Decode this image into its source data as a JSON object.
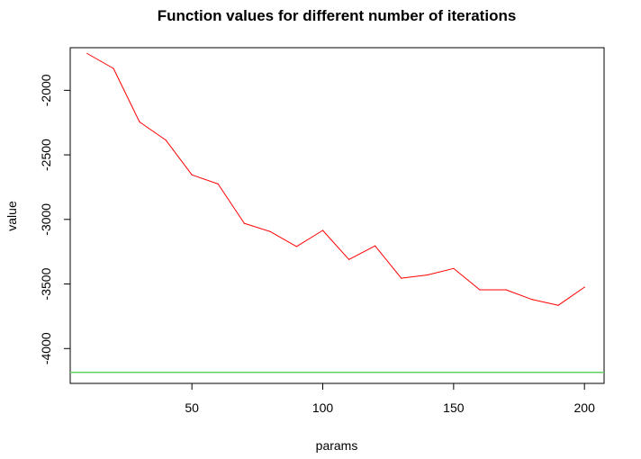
{
  "chart_data": {
    "type": "line",
    "title": "Function values for different number of iterations",
    "xlabel": "params",
    "ylabel": "value",
    "xlim": [
      3.5,
      207.5
    ],
    "ylim": [
      -4270,
      -1670
    ],
    "x_ticks": [
      50,
      100,
      150,
      200
    ],
    "y_ticks": [
      -2000,
      -2500,
      -3000,
      -3500,
      -4000
    ],
    "grid": false,
    "legend": "none",
    "series": [
      {
        "color": "#ff0000",
        "x": [
          10,
          20,
          30,
          40,
          50,
          60,
          70,
          80,
          90,
          100,
          110,
          120,
          130,
          140,
          150,
          160,
          170,
          180,
          190,
          200
        ],
        "values": [
          -1715,
          -1830,
          -2245,
          -2385,
          -2655,
          -2725,
          -3030,
          -3095,
          -3210,
          -3085,
          -3310,
          -3205,
          -3455,
          -3430,
          -3380,
          -3545,
          -3545,
          -3620,
          -3665,
          -3525
        ]
      }
    ],
    "reference_lines": [
      {
        "orientation": "horizontal",
        "value": -4185,
        "color": "#5fd35f"
      }
    ]
  }
}
